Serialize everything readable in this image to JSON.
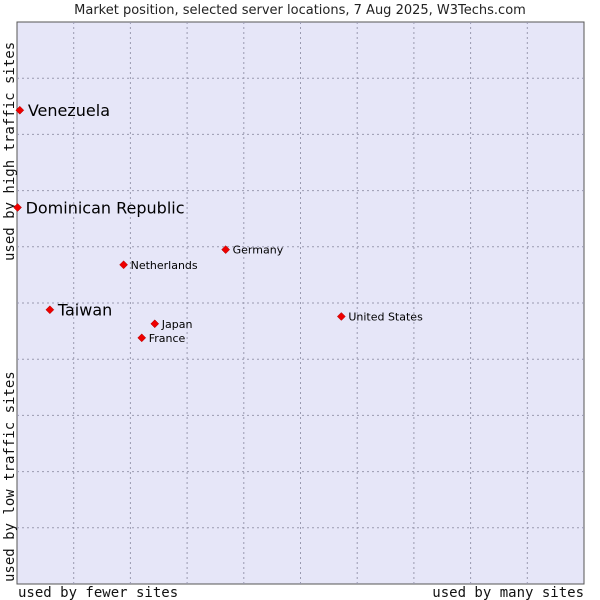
{
  "chart_data": {
    "type": "scatter",
    "title": "Market position, selected server locations, 7 Aug 2025, W3Techs.com",
    "xlabel_left": "used by fewer sites",
    "xlabel_right": "used by many sites",
    "ylabel_top": "used by high traffic sites",
    "ylabel_bottom": "used by low traffic sites",
    "xlim": [
      0,
      100
    ],
    "ylim": [
      0,
      100
    ],
    "grid": true,
    "marker_color": "#ee0000",
    "plot_background": "#e6e6f8",
    "points": [
      {
        "name": "Venezuela",
        "x": 0.5,
        "y": 84.3,
        "emphasis": true
      },
      {
        "name": "Dominican Republic",
        "x": 0.1,
        "y": 67.0,
        "emphasis": true
      },
      {
        "name": "Germany",
        "x": 36.8,
        "y": 59.5,
        "emphasis": false
      },
      {
        "name": "Netherlands",
        "x": 18.8,
        "y": 56.8,
        "emphasis": false
      },
      {
        "name": "Taiwan",
        "x": 5.8,
        "y": 48.8,
        "emphasis": true
      },
      {
        "name": "United States",
        "x": 57.2,
        "y": 47.6,
        "emphasis": false
      },
      {
        "name": "Japan",
        "x": 24.3,
        "y": 46.3,
        "emphasis": false
      },
      {
        "name": "France",
        "x": 22.0,
        "y": 43.8,
        "emphasis": false
      }
    ]
  }
}
